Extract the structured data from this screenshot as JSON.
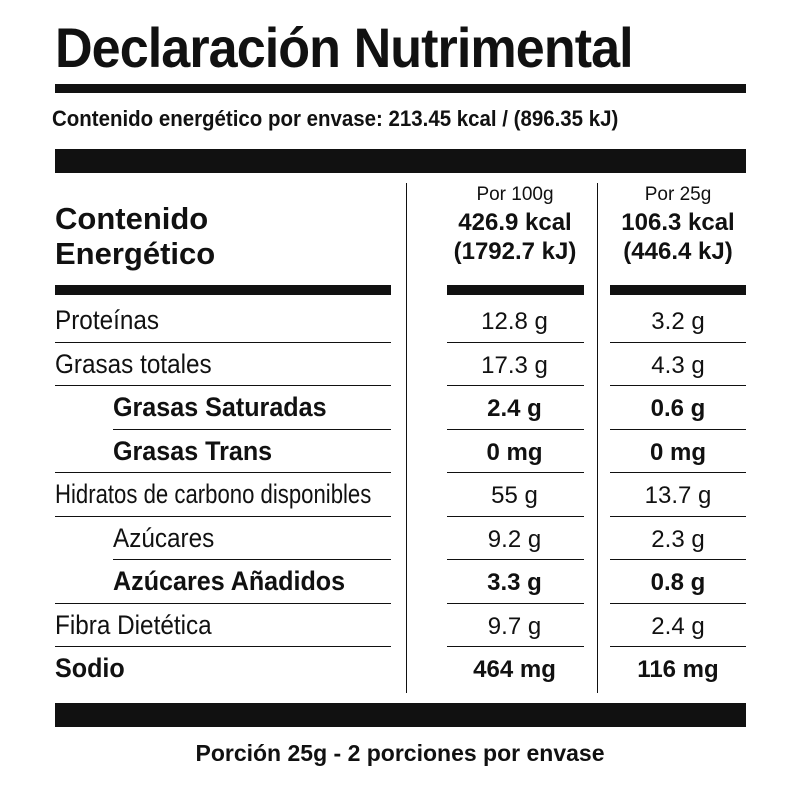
{
  "title": "Declaración Nutrimental",
  "energy_per_package": "Contenido energético por envase: 213.45 kcal / (896.35 kJ)",
  "header": {
    "label_line1": "Contenido",
    "label_line2": "Energético",
    "col1": {
      "portion": "Por 100g",
      "kcal": "426.9 kcal",
      "kj": "(1792.7 kJ)"
    },
    "col2": {
      "portion": "Por 25g",
      "kcal": "106.3 kcal",
      "kj": "(446.4 kJ)"
    }
  },
  "rows": [
    {
      "name": "Proteínas",
      "per100": "12.8 g",
      "per25": "3.2 g"
    },
    {
      "name": "Grasas totales",
      "per100": "17.3 g",
      "per25": "4.3 g"
    },
    {
      "name": "Grasas Saturadas",
      "per100": "2.4 g",
      "per25": "0.6 g"
    },
    {
      "name": "Grasas Trans",
      "per100": "0 mg",
      "per25": "0 mg"
    },
    {
      "name": "Hidratos de carbono disponibles",
      "per100": "55 g",
      "per25": "13.7 g"
    },
    {
      "name": "Azúcares",
      "per100": "9.2 g",
      "per25": "2.3 g"
    },
    {
      "name": "Azúcares Añadidos",
      "per100": "3.3 g",
      "per25": "0.8 g"
    },
    {
      "name": "Fibra Dietética",
      "per100": "9.7 g",
      "per25": "2.4 g"
    },
    {
      "name": "Sodio",
      "per100": "464 mg",
      "per25": "116 mg"
    }
  ],
  "footer": "Porción 25g - 2 porciones por envase"
}
